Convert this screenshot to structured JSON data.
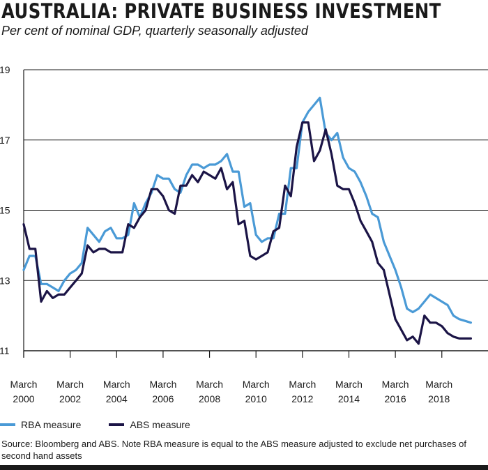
{
  "header": {
    "title": "AUSTRALIA: PRIVATE BUSINESS INVESTMENT",
    "subtitle": "Per cent of nominal GDP, quarterly seasonally adjusted"
  },
  "colors": {
    "rba": "#4a9ad6",
    "abs": "#1b1446",
    "grid": "#1a1a1a"
  },
  "chart_data": {
    "type": "line",
    "title": "AUSTRALIA: PRIVATE BUSINESS INVESTMENT",
    "subtitle": "Per cent of nominal GDP, quarterly seasonally adjusted",
    "ylim": [
      11,
      19
    ],
    "yticks": [
      11,
      13,
      15,
      17,
      19
    ],
    "xlim": [
      "2000-03",
      "2019-06"
    ],
    "xticks": [
      {
        "line1": "March",
        "line2": "2000",
        "date": "2000-03"
      },
      {
        "line1": "March",
        "line2": "2002",
        "date": "2002-03"
      },
      {
        "line1": "March",
        "line2": "2004",
        "date": "2004-03"
      },
      {
        "line1": "March",
        "line2": "2006",
        "date": "2006-03"
      },
      {
        "line1": "March",
        "line2": "2008",
        "date": "2008-03"
      },
      {
        "line1": "March",
        "line2": "2010",
        "date": "2010-03"
      },
      {
        "line1": "March",
        "line2": "2012",
        "date": "2012-03"
      },
      {
        "line1": "March",
        "line2": "2014",
        "date": "2014-03"
      },
      {
        "line1": "March",
        "line2": "2016",
        "date": "2016-03"
      },
      {
        "line1": "March",
        "line2": "2018",
        "date": "2018-03"
      }
    ],
    "x": [
      "2000-03",
      "2000-06",
      "2000-09",
      "2000-12",
      "2001-03",
      "2001-06",
      "2001-09",
      "2001-12",
      "2002-03",
      "2002-06",
      "2002-09",
      "2002-12",
      "2003-03",
      "2003-06",
      "2003-09",
      "2003-12",
      "2004-03",
      "2004-06",
      "2004-09",
      "2004-12",
      "2005-03",
      "2005-06",
      "2005-09",
      "2005-12",
      "2006-03",
      "2006-06",
      "2006-09",
      "2006-12",
      "2007-03",
      "2007-06",
      "2007-09",
      "2007-12",
      "2008-03",
      "2008-06",
      "2008-09",
      "2008-12",
      "2009-03",
      "2009-06",
      "2009-09",
      "2009-12",
      "2010-03",
      "2010-06",
      "2010-09",
      "2010-12",
      "2011-03",
      "2011-06",
      "2011-09",
      "2011-12",
      "2012-03",
      "2012-06",
      "2012-09",
      "2012-12",
      "2013-03",
      "2013-06",
      "2013-09",
      "2013-12",
      "2014-03",
      "2014-06",
      "2014-09",
      "2014-12",
      "2015-03",
      "2015-06",
      "2015-09",
      "2015-12",
      "2016-03",
      "2016-06",
      "2016-09",
      "2016-12",
      "2017-03",
      "2017-06",
      "2017-09",
      "2017-12",
      "2018-03",
      "2018-06",
      "2018-09",
      "2018-12",
      "2019-03",
      "2019-06"
    ],
    "series": [
      {
        "name": "RBA measure",
        "key": "rba",
        "values": [
          13.3,
          13.7,
          13.7,
          12.9,
          12.9,
          12.8,
          12.7,
          13.0,
          13.2,
          13.3,
          13.5,
          14.5,
          14.3,
          14.1,
          14.4,
          14.5,
          14.2,
          14.2,
          14.3,
          15.2,
          14.8,
          15.2,
          15.5,
          16.0,
          15.9,
          15.9,
          15.6,
          15.5,
          16.0,
          16.3,
          16.3,
          16.2,
          16.3,
          16.3,
          16.4,
          16.6,
          16.1,
          16.1,
          15.1,
          15.2,
          14.3,
          14.1,
          14.2,
          14.2,
          14.9,
          14.9,
          16.2,
          16.2,
          17.5,
          17.8,
          18.0,
          18.2,
          17.2,
          17.0,
          17.2,
          16.5,
          16.2,
          16.1,
          15.8,
          15.4,
          14.9,
          14.8,
          14.1,
          13.7,
          13.3,
          12.8,
          12.2,
          12.1,
          12.2,
          12.4,
          12.6,
          12.5,
          12.4,
          12.3,
          12.0,
          11.9,
          11.85,
          11.8
        ]
      },
      {
        "name": "ABS measure",
        "key": "abs",
        "values": [
          14.6,
          13.9,
          13.9,
          12.4,
          12.7,
          12.5,
          12.6,
          12.6,
          12.8,
          13.0,
          13.2,
          14.0,
          13.8,
          13.9,
          13.9,
          13.8,
          13.8,
          13.8,
          14.6,
          14.5,
          14.8,
          15.0,
          15.6,
          15.6,
          15.4,
          15.0,
          14.9,
          15.7,
          15.7,
          16.0,
          15.8,
          16.1,
          16.0,
          15.9,
          16.2,
          15.6,
          15.8,
          14.6,
          14.7,
          13.7,
          13.6,
          13.7,
          13.8,
          14.4,
          14.5,
          15.7,
          15.4,
          16.8,
          17.5,
          17.5,
          16.4,
          16.7,
          17.3,
          16.6,
          15.7,
          15.6,
          15.6,
          15.2,
          14.7,
          14.4,
          14.1,
          13.5,
          13.3,
          12.6,
          11.9,
          11.6,
          11.3,
          11.4,
          11.2,
          12.0,
          11.8,
          11.8,
          11.7,
          11.5,
          11.4,
          11.35,
          11.35,
          11.35
        ]
      }
    ],
    "grid": "horizontal"
  },
  "legend": {
    "items": [
      {
        "label": "RBA measure",
        "key": "rba"
      },
      {
        "label": "ABS measure",
        "key": "abs"
      }
    ]
  },
  "source": "Source: Bloomberg and ABS. Note RBA measure is equal to the ABS measure adjusted to exclude net purchases of second hand assets"
}
